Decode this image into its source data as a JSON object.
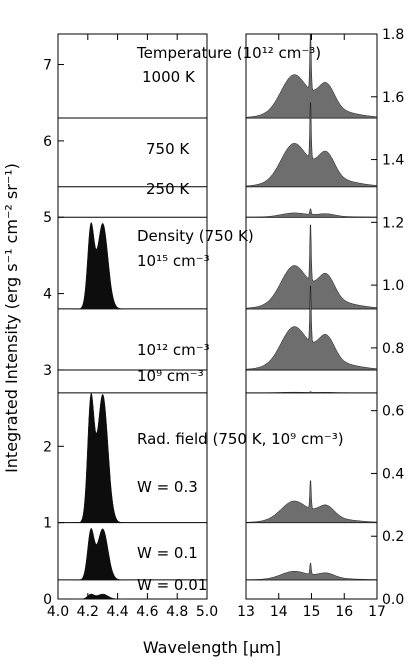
{
  "chart_data": {
    "type": "area",
    "left_panel": {
      "x_range": [
        4.0,
        5.0
      ],
      "y_range": [
        0,
        7.4
      ],
      "x_ticks": [
        "4.0",
        "4.2",
        "4.4",
        "4.6",
        "4.8",
        "5.0"
      ],
      "y_ticks": [
        "0",
        "1",
        "2",
        "3",
        "4",
        "5",
        "6",
        "7"
      ],
      "band": {
        "peaks_um": [
          4.22,
          4.3
        ]
      }
    },
    "right_panel": {
      "x_range": [
        13,
        17
      ],
      "y_range": [
        0,
        1.8
      ],
      "x_ticks": [
        "13",
        "14",
        "15",
        "16",
        "17"
      ],
      "y_ticks": [
        "0.0",
        "0.2",
        "0.4",
        "0.6",
        "0.8",
        "1.0",
        "1.2",
        "1.4",
        "1.6",
        "1.8"
      ],
      "band": {
        "peaks_um": [
          14.45,
          14.97,
          15.45
        ]
      }
    },
    "xlabel": "Wavelength [μm]",
    "ylabel": "Integrated Intensity (erg s⁻¹ cm⁻² sr⁻¹)",
    "rows": [
      {
        "label": "1000 K",
        "baseline": 6.3,
        "left_amp": 0.0,
        "right_amp": 0.2
      },
      {
        "label": "750 K",
        "baseline": 5.4,
        "left_amp": 0.0,
        "right_amp": 0.2
      },
      {
        "label": "250 K",
        "baseline": 5.0,
        "left_amp": 0.0,
        "right_amp": 0.02
      },
      {
        "label": "10¹⁵ cm⁻³",
        "baseline": 3.8,
        "left_amp": 1.12,
        "right_amp": 0.2
      },
      {
        "label": "10¹² cm⁻³",
        "baseline": 3.0,
        "left_amp": 0.0,
        "right_amp": 0.2
      },
      {
        "label": "10⁹ cm⁻³",
        "baseline": 2.7,
        "left_amp": 0.0,
        "right_amp": 0.003
      },
      {
        "label": "W = 0.3",
        "baseline": 1.0,
        "left_amp": 1.68,
        "right_amp": 0.1
      },
      {
        "label": "W = 0.1",
        "baseline": 0.25,
        "left_amp": 0.67,
        "right_amp": 0.04
      },
      {
        "label": "W = 0.01",
        "baseline": 0.0,
        "left_amp": 0.065,
        "right_amp": 0.0
      }
    ],
    "group_titles": [
      "Temperature (10¹² cm⁻³)",
      "Density (750 K)",
      "Rad. field (750 K, 10⁹ cm⁻³)"
    ]
  }
}
